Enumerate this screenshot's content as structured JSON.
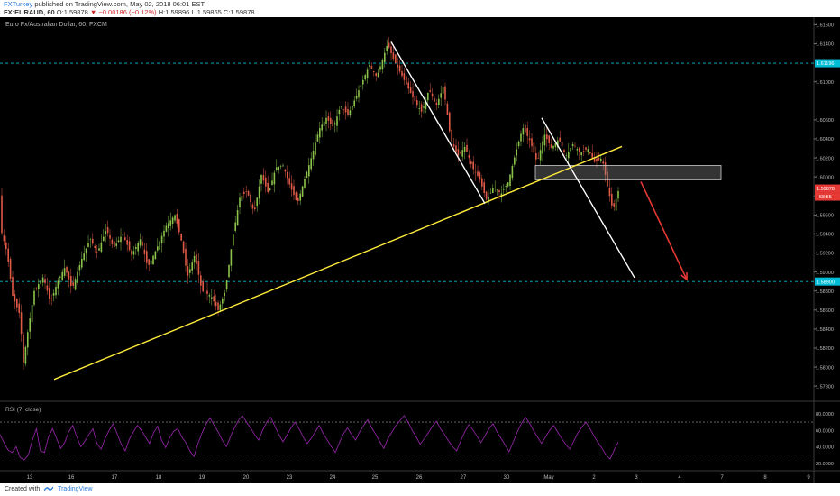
{
  "header": {
    "author": "FXTurkey",
    "published_text": "published on TradingView.com, May 02, 2018 06:01 EST",
    "symbol": "FX:EURAUD, 60",
    "open": "O:1.59878",
    "change": "▼ −0.00186 (−0.12%)",
    "high": "H:1.59896",
    "low": "L:1.59865",
    "close": "C:1.59878"
  },
  "footer": {
    "created_with": "Created with",
    "brand": "TradingView"
  },
  "chart_data": {
    "type": "candlestick",
    "title": "Euro Fx/Australian Dollar, 60, FXCM",
    "x_labels": [
      "13",
      "16",
      "17",
      "18",
      "19",
      "20",
      "23",
      "24",
      "25",
      "26",
      "27",
      "30",
      "May",
      "2",
      "3",
      "4",
      "7",
      "8",
      "9"
    ],
    "y_ticks": [
      "1.61600",
      "1.61400",
      "1.61000",
      "1.60600",
      "1.60400",
      "1.60200",
      "1.60000",
      "1.59800",
      "1.59600",
      "1.59400",
      "1.59200",
      "1.59000",
      "1.58800",
      "1.58600",
      "1.58400",
      "1.58200",
      "1.58000",
      "1.57800"
    ],
    "y_tick_values": [
      1.616,
      1.614,
      1.61,
      1.606,
      1.604,
      1.602,
      1.6,
      1.598,
      1.596,
      1.594,
      1.592,
      1.59,
      1.588,
      1.586,
      1.584,
      1.582,
      1.58,
      1.578
    ],
    "ylim": [
      1.5765,
      1.6168
    ],
    "price_labels": [
      {
        "value": 1.61196,
        "text": "1.61196",
        "color": "#00bcd4"
      },
      {
        "value": 1.59878,
        "text": "1.59878",
        "color": "#e53935"
      },
      {
        "value": 1.589,
        "text": "1.58900",
        "color": "#00bcd4"
      }
    ],
    "countdown": "58:55",
    "price_path": [
      [
        0,
        1.5948
      ],
      [
        8,
        1.592
      ],
      [
        14,
        1.5875
      ],
      [
        22,
        1.5855
      ],
      [
        26,
        1.5805
      ],
      [
        30,
        1.5832
      ],
      [
        38,
        1.588
      ],
      [
        48,
        1.5895
      ],
      [
        56,
        1.5868
      ],
      [
        64,
        1.589
      ],
      [
        72,
        1.5905
      ],
      [
        80,
        1.5882
      ],
      [
        90,
        1.5912
      ],
      [
        100,
        1.5935
      ],
      [
        108,
        1.592
      ],
      [
        118,
        1.5945
      ],
      [
        126,
        1.5925
      ],
      [
        136,
        1.594
      ],
      [
        146,
        1.5918
      ],
      [
        156,
        1.5935
      ],
      [
        164,
        1.5905
      ],
      [
        174,
        1.5925
      ],
      [
        184,
        1.5948
      ],
      [
        194,
        1.596
      ],
      [
        202,
        1.593
      ],
      [
        208,
        1.5895
      ],
      [
        216,
        1.5918
      ],
      [
        224,
        1.588
      ],
      [
        234,
        1.5875
      ],
      [
        242,
        1.586
      ],
      [
        250,
        1.588
      ],
      [
        258,
        1.5935
      ],
      [
        266,
        1.5978
      ],
      [
        274,
        1.5985
      ],
      [
        282,
        1.5962
      ],
      [
        290,
        1.6002
      ],
      [
        298,
        1.5982
      ],
      [
        306,
        1.601
      ],
      [
        314,
        1.6012
      ],
      [
        322,
        1.599
      ],
      [
        330,
        1.5972
      ],
      [
        338,
        1.5998
      ],
      [
        346,
        1.6022
      ],
      [
        354,
        1.605
      ],
      [
        362,
        1.6062
      ],
      [
        370,
        1.6052
      ],
      [
        378,
        1.6075
      ],
      [
        386,
        1.6065
      ],
      [
        394,
        1.6082
      ],
      [
        402,
        1.61
      ],
      [
        410,
        1.6118
      ],
      [
        418,
        1.6105
      ],
      [
        424,
        1.6122
      ],
      [
        430,
        1.614
      ],
      [
        436,
        1.6125
      ],
      [
        444,
        1.611
      ],
      [
        452,
        1.6095
      ],
      [
        460,
        1.608
      ],
      [
        468,
        1.6068
      ],
      [
        476,
        1.6092
      ],
      [
        484,
        1.6075
      ],
      [
        492,
        1.6095
      ],
      [
        500,
        1.604
      ],
      [
        508,
        1.6022
      ],
      [
        516,
        1.6032
      ],
      [
        524,
        1.601
      ],
      [
        532,
        1.5998
      ],
      [
        540,
        1.5975
      ],
      [
        548,
        1.599
      ],
      [
        556,
        1.5982
      ],
      [
        564,
        1.5995
      ],
      [
        572,
        1.6025
      ],
      [
        580,
        1.6052
      ],
      [
        588,
        1.6038
      ],
      [
        596,
        1.6015
      ],
      [
        604,
        1.6045
      ],
      [
        612,
        1.603
      ],
      [
        620,
        1.604
      ],
      [
        628,
        1.6022
      ],
      [
        636,
        1.6035
      ],
      [
        644,
        1.6025
      ],
      [
        652,
        1.603
      ],
      [
        660,
        1.6015
      ],
      [
        668,
        1.602
      ],
      [
        674,
        1.599
      ],
      [
        680,
        1.5965
      ],
      [
        686,
        1.5985
      ]
    ],
    "trendlines": [
      {
        "name": "uptrend",
        "color": "#ffeb3b",
        "points": [
          [
            60,
            1.5787
          ],
          [
            690,
            1.6032
          ]
        ]
      },
      {
        "name": "downtrend-1",
        "color": "#ffffff",
        "points": [
          [
            434,
            1.6142
          ],
          [
            538,
            1.5972
          ]
        ]
      },
      {
        "name": "downtrend-2",
        "color": "#ffffff",
        "points": [
          [
            601,
            1.6062
          ],
          [
            704,
            1.5894
          ]
        ]
      }
    ],
    "zone": {
      "x0": 594,
      "x1": 800,
      "y_low": 1.5997,
      "y_high": 1.6012
    },
    "arrow": {
      "color": "#e53935",
      "from": [
        711,
        1.5995
      ],
      "to": [
        762,
        1.5892
      ]
    },
    "rsi": {
      "label": "RSI (7, close)",
      "ticks": [
        "80.0000",
        "60.0000",
        "40.0000",
        "20.0000"
      ],
      "tick_values": [
        80,
        60,
        40,
        20
      ],
      "ylim": [
        12,
        92
      ],
      "levels": [
        70,
        30
      ],
      "color": "#9c27b0",
      "values": [
        55,
        45,
        36,
        33,
        40,
        27,
        24,
        30,
        48,
        62,
        35,
        33,
        52,
        62,
        50,
        38,
        45,
        58,
        66,
        52,
        40,
        47,
        55,
        62,
        44,
        37,
        50,
        60,
        68,
        56,
        43,
        35,
        49,
        58,
        66,
        60,
        52,
        44,
        57,
        65,
        48,
        39,
        51,
        59,
        62,
        52,
        45,
        35,
        28,
        44,
        57,
        68,
        75,
        66,
        58,
        48,
        40,
        52,
        63,
        72,
        78,
        70,
        63,
        55,
        48,
        60,
        70,
        76,
        65,
        55,
        46,
        54,
        63,
        70,
        62,
        52,
        44,
        50,
        58,
        66,
        56,
        48,
        40,
        33,
        45,
        56,
        63,
        55,
        48,
        58,
        66,
        73,
        63,
        55,
        46,
        38,
        50,
        58,
        66,
        72,
        78,
        70,
        60,
        52,
        43,
        50,
        57,
        65,
        71,
        62,
        55,
        47,
        40,
        35,
        47,
        58,
        67,
        61,
        53,
        45,
        53,
        62,
        68,
        58,
        50,
        42,
        34,
        46,
        58,
        68,
        76,
        69,
        60,
        52,
        44,
        52,
        60,
        66,
        58,
        50,
        43,
        37,
        47,
        57,
        64,
        70,
        62,
        53,
        45,
        38,
        30,
        25,
        36,
        46
      ]
    }
  }
}
